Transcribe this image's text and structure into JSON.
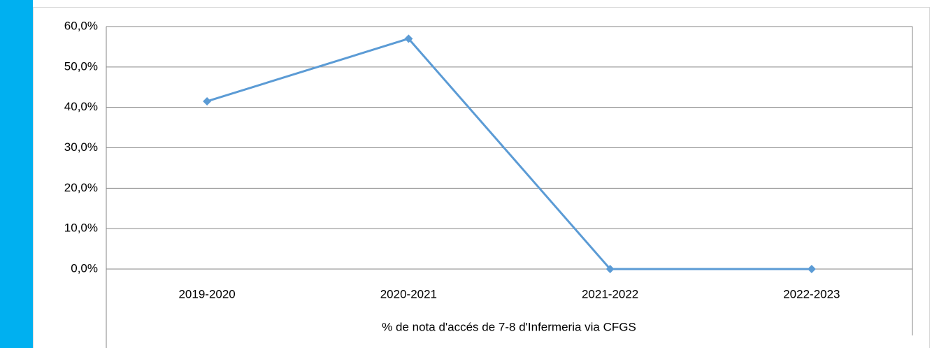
{
  "chart_data": {
    "type": "line",
    "x_label": "% de nota d'accés de 7-8 d'Infermeria via CFGS",
    "categories": [
      "2019-2020",
      "2020-2021",
      "2021-2022",
      "2022-2023"
    ],
    "series": [
      {
        "name": "% de nota d'accés de 7-8 d'Infermeria via CFGS",
        "color": "#5b9bd5",
        "values": [
          41.5,
          57.0,
          0,
          0
        ]
      }
    ],
    "ylim": [
      0,
      60
    ],
    "yticks": [
      {
        "value": 0,
        "label": "0,0%"
      },
      {
        "value": 10,
        "label": "10,0%"
      },
      {
        "value": 20,
        "label": "20,0%"
      },
      {
        "value": 30,
        "label": "30,0%"
      },
      {
        "value": 40,
        "label": "40,0%"
      },
      {
        "value": 50,
        "label": "50,0%"
      },
      {
        "value": 60,
        "label": "60,0%"
      }
    ],
    "grid": true
  }
}
